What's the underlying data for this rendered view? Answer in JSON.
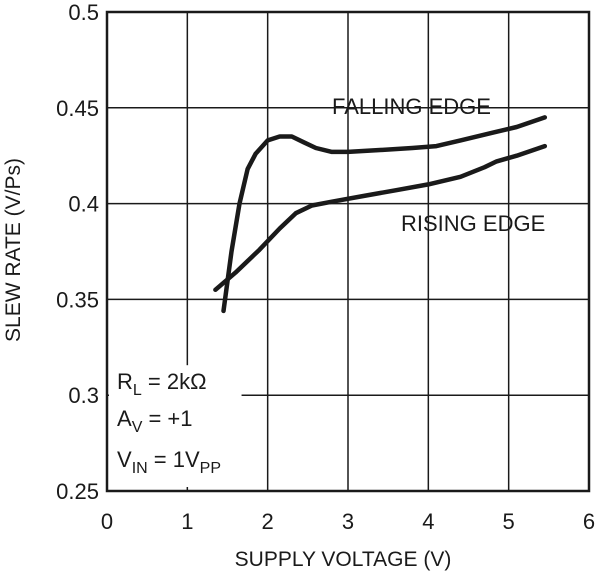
{
  "chart_data": {
    "type": "line",
    "xlabel": "SUPPLY VOLTAGE (V)",
    "ylabel": "SLEW RATE (V/Ps)",
    "xlim": [
      0,
      6
    ],
    "ylim": [
      0.25,
      0.5
    ],
    "x_ticks": [
      "0",
      "1",
      "2",
      "3",
      "4",
      "5",
      "6"
    ],
    "y_ticks": [
      "0.25",
      "0.3",
      "0.35",
      "0.4",
      "0.45",
      "0.5"
    ],
    "grid": true,
    "series": [
      {
        "name": "FALLING EDGE",
        "x": [
          1.45,
          1.55,
          1.65,
          1.75,
          1.85,
          2.0,
          2.15,
          2.3,
          2.45,
          2.6,
          2.8,
          3.0,
          3.4,
          3.8,
          4.1,
          4.4,
          4.8,
          5.1,
          5.45
        ],
        "y": [
          0.344,
          0.375,
          0.4,
          0.418,
          0.426,
          0.433,
          0.435,
          0.435,
          0.432,
          0.429,
          0.427,
          0.427,
          0.428,
          0.429,
          0.43,
          0.433,
          0.437,
          0.44,
          0.445
        ]
      },
      {
        "name": "RISING EDGE",
        "x": [
          1.35,
          1.6,
          1.9,
          2.15,
          2.35,
          2.55,
          2.8,
          3.2,
          3.6,
          4.0,
          4.4,
          4.7,
          4.85,
          5.1,
          5.45
        ],
        "y": [
          0.355,
          0.364,
          0.376,
          0.387,
          0.395,
          0.399,
          0.401,
          0.404,
          0.407,
          0.41,
          0.414,
          0.419,
          0.422,
          0.425,
          0.43
        ]
      }
    ],
    "annotations": {
      "rl": {
        "main": "R",
        "sub": "L",
        "rest": " = 2kΩ"
      },
      "av": {
        "main": "A",
        "sub": "V",
        "rest": " = +1"
      },
      "vin": {
        "main": "V",
        "sub": "IN",
        "mid": " = 1V",
        "sub2": "PP"
      }
    }
  }
}
